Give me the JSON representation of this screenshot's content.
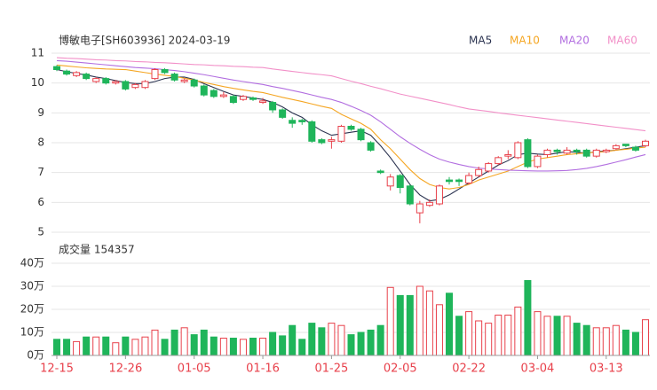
{
  "chart_data": [
    {
      "type": "candlestick",
      "title": "博敏电子[SH603936] 2024-03-19",
      "up_color": "#e8414b",
      "down_color": "#1fb55a",
      "open": [
        10.55,
        10.4,
        10.25,
        10.3,
        10.05,
        10.15,
        10.0,
        10.05,
        9.85,
        9.85,
        10.15,
        10.45,
        10.3,
        10.05,
        10.1,
        9.9,
        9.75,
        9.55,
        9.55,
        9.45,
        9.5,
        9.35,
        9.35,
        9.1,
        8.75,
        8.75,
        8.7,
        8.1,
        8.05,
        8.05,
        8.55,
        8.45,
        8.0,
        7.05,
        6.55,
        6.9,
        6.55,
        5.65,
        5.9,
        5.95,
        6.75,
        6.75,
        6.65,
        6.9,
        7.05,
        7.3,
        7.55,
        7.5,
        8.1,
        7.2,
        7.6,
        7.75,
        7.65,
        7.75,
        7.75,
        7.55,
        7.7,
        7.8,
        7.95,
        7.85,
        7.9
      ],
      "close": [
        10.45,
        10.3,
        10.35,
        10.15,
        10.15,
        10.0,
        10.05,
        9.8,
        9.95,
        10.05,
        10.45,
        10.35,
        10.1,
        10.1,
        9.9,
        9.6,
        9.55,
        9.6,
        9.35,
        9.55,
        9.45,
        9.4,
        9.1,
        8.85,
        8.65,
        8.7,
        8.05,
        8.0,
        8.1,
        8.55,
        8.45,
        8.1,
        7.75,
        7.0,
        6.85,
        6.5,
        5.95,
        5.95,
        6.0,
        6.55,
        6.7,
        6.7,
        6.9,
        7.1,
        7.3,
        7.5,
        7.6,
        8.0,
        7.2,
        7.55,
        7.75,
        7.7,
        7.75,
        7.7,
        7.55,
        7.75,
        7.75,
        7.9,
        7.9,
        7.75,
        8.05
      ],
      "high": [
        10.6,
        10.45,
        10.4,
        10.35,
        10.2,
        10.2,
        10.1,
        10.1,
        10.0,
        10.1,
        10.5,
        10.5,
        10.35,
        10.15,
        10.15,
        9.95,
        9.8,
        9.7,
        9.6,
        9.6,
        9.55,
        9.5,
        9.4,
        9.15,
        8.85,
        8.8,
        8.75,
        8.15,
        8.2,
        8.6,
        8.6,
        8.5,
        8.05,
        7.1,
        6.95,
        6.95,
        6.6,
        6.05,
        6.1,
        6.6,
        6.85,
        6.8,
        7.0,
        7.2,
        7.35,
        7.55,
        7.75,
        8.05,
        8.15,
        7.6,
        7.8,
        7.8,
        7.85,
        7.8,
        7.8,
        7.8,
        7.8,
        7.95,
        7.95,
        7.9,
        8.1
      ],
      "low": [
        10.4,
        10.25,
        10.2,
        10.1,
        10.0,
        9.95,
        9.95,
        9.75,
        9.8,
        9.8,
        10.1,
        10.3,
        10.05,
        10.0,
        9.85,
        9.55,
        9.5,
        9.5,
        9.3,
        9.4,
        9.4,
        9.3,
        9.0,
        8.8,
        8.5,
        8.6,
        8.0,
        7.95,
        7.8,
        8.0,
        8.4,
        8.05,
        7.7,
        6.95,
        6.4,
        6.3,
        5.9,
        5.3,
        5.85,
        5.9,
        6.6,
        6.55,
        6.6,
        6.85,
        7.0,
        7.25,
        7.45,
        7.45,
        7.15,
        7.15,
        7.5,
        7.6,
        7.6,
        7.6,
        7.5,
        7.5,
        7.65,
        7.75,
        7.85,
        7.7,
        7.85
      ],
      "series": [
        {
          "name": "MA5",
          "color": "#2b3350",
          "values": [
            10.45,
            10.38,
            10.32,
            10.27,
            10.2,
            10.15,
            10.08,
            10.02,
            9.98,
            9.98,
            10.05,
            10.15,
            10.2,
            10.2,
            10.12,
            9.98,
            9.85,
            9.72,
            9.6,
            9.55,
            9.5,
            9.45,
            9.35,
            9.2,
            9.0,
            8.85,
            8.6,
            8.4,
            8.25,
            8.3,
            8.35,
            8.4,
            8.25,
            7.9,
            7.5,
            7.05,
            6.6,
            6.25,
            6.05,
            6.1,
            6.25,
            6.45,
            6.65,
            6.85,
            7.05,
            7.25,
            7.4,
            7.6,
            7.65,
            7.62,
            7.6,
            7.65,
            7.7,
            7.68,
            7.65,
            7.7,
            7.72,
            7.75,
            7.8,
            7.85,
            7.9
          ]
        },
        {
          "name": "MA10",
          "color": "#f5a623",
          "values": [
            10.6,
            10.57,
            10.54,
            10.51,
            10.49,
            10.47,
            10.46,
            10.45,
            10.4,
            10.35,
            10.3,
            10.26,
            10.22,
            10.16,
            10.1,
            10.02,
            9.95,
            9.88,
            9.82,
            9.77,
            9.72,
            9.68,
            9.6,
            9.52,
            9.45,
            9.38,
            9.3,
            9.22,
            9.15,
            8.95,
            8.8,
            8.65,
            8.45,
            8.1,
            7.8,
            7.45,
            7.1,
            6.8,
            6.6,
            6.5,
            6.45,
            6.5,
            6.6,
            6.75,
            6.85,
            6.95,
            7.05,
            7.2,
            7.35,
            7.45,
            7.5,
            7.55,
            7.6,
            7.63,
            7.66,
            7.68,
            7.7,
            7.75,
            7.78,
            7.82,
            7.85
          ]
        },
        {
          "name": "MA20",
          "color": "#b26ee0",
          "values": [
            10.75,
            10.73,
            10.7,
            10.67,
            10.64,
            10.61,
            10.58,
            10.55,
            10.52,
            10.5,
            10.48,
            10.45,
            10.42,
            10.38,
            10.33,
            10.28,
            10.22,
            10.16,
            10.1,
            10.05,
            10.0,
            9.95,
            9.88,
            9.82,
            9.75,
            9.68,
            9.6,
            9.52,
            9.45,
            9.35,
            9.22,
            9.08,
            8.92,
            8.7,
            8.45,
            8.2,
            7.98,
            7.78,
            7.6,
            7.45,
            7.35,
            7.27,
            7.2,
            7.15,
            7.12,
            7.1,
            7.08,
            7.07,
            7.06,
            7.05,
            7.05,
            7.06,
            7.07,
            7.1,
            7.14,
            7.2,
            7.27,
            7.35,
            7.43,
            7.52,
            7.6
          ]
        },
        {
          "name": "MA60",
          "color": "#f290c8",
          "values": [
            10.85,
            10.83,
            10.82,
            10.8,
            10.78,
            10.77,
            10.75,
            10.74,
            10.72,
            10.71,
            10.69,
            10.68,
            10.66,
            10.64,
            10.62,
            10.61,
            10.59,
            10.58,
            10.56,
            10.55,
            10.53,
            10.52,
            10.47,
            10.43,
            10.39,
            10.35,
            10.31,
            10.28,
            10.24,
            10.15,
            10.06,
            9.98,
            9.89,
            9.81,
            9.72,
            9.63,
            9.56,
            9.49,
            9.42,
            9.35,
            9.28,
            9.2,
            9.13,
            9.09,
            9.05,
            9.0,
            8.96,
            8.92,
            8.88,
            8.84,
            8.8,
            8.76,
            8.72,
            8.68,
            8.64,
            8.6,
            8.56,
            8.52,
            8.48,
            8.44,
            8.4
          ]
        }
      ],
      "ylim": [
        5,
        11
      ],
      "yticks": [
        5,
        6,
        7,
        8,
        9,
        10,
        11
      ],
      "grid": true
    },
    {
      "type": "bar",
      "title": "成交量 154357",
      "categories": [
        "12-15",
        null,
        null,
        null,
        null,
        null,
        null,
        "12-26",
        null,
        null,
        null,
        null,
        null,
        null,
        "01-05",
        null,
        null,
        null,
        null,
        null,
        null,
        "01-16",
        null,
        null,
        null,
        null,
        null,
        null,
        "01-25",
        null,
        null,
        null,
        null,
        null,
        null,
        "02-05",
        null,
        null,
        null,
        null,
        null,
        null,
        "02-22",
        null,
        null,
        null,
        null,
        null,
        null,
        "03-04",
        null,
        null,
        null,
        null,
        null,
        null,
        "03-13",
        null,
        null,
        null,
        null
      ],
      "values": [
        7,
        7,
        6,
        8,
        8,
        8,
        5.5,
        8,
        7,
        8,
        11,
        7,
        11,
        12,
        9,
        11,
        8,
        7.5,
        7.5,
        7,
        7.5,
        7.5,
        10,
        8.5,
        13,
        7,
        14,
        12,
        14,
        13,
        9,
        10,
        11,
        13,
        29.5,
        26,
        26,
        30,
        28,
        22,
        27,
        17,
        19,
        15,
        14,
        17.5,
        17.5,
        21,
        32.5,
        19,
        17,
        17,
        17,
        14,
        13,
        12,
        12,
        13,
        11,
        10,
        15.5
      ],
      "ylim": [
        0,
        40
      ],
      "yticks": [
        {
          "value": 0,
          "label": "0万"
        },
        {
          "value": 10,
          "label": "10万"
        },
        {
          "value": 20,
          "label": "20万"
        },
        {
          "value": 30,
          "label": "30万"
        },
        {
          "value": 40,
          "label": "40万"
        }
      ],
      "grid": true
    }
  ]
}
